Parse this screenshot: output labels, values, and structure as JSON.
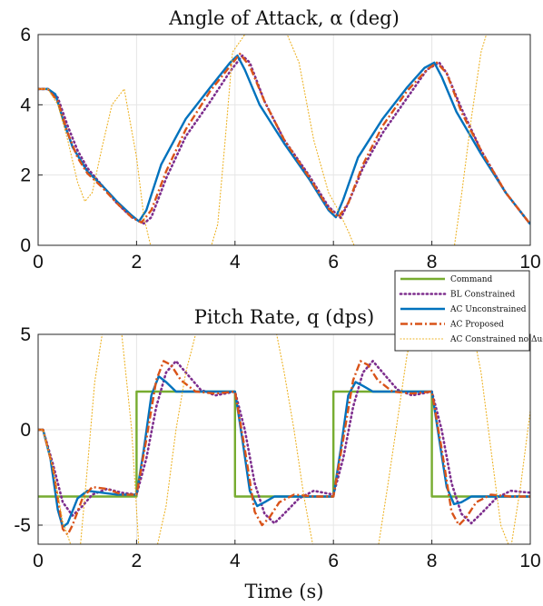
{
  "chart_data": [
    {
      "type": "line",
      "title": "Angle of Attack, α (deg)",
      "xlabel": "",
      "ylabel": "",
      "xlim": [
        0,
        10
      ],
      "ylim": [
        0,
        6
      ],
      "xticks": [
        "0",
        "2",
        "4",
        "6",
        "8",
        "10"
      ],
      "yticks": [
        "0",
        "2",
        "4",
        "6"
      ],
      "grid": true,
      "series": [
        {
          "name": "BL Constrained",
          "color": "#7e2f8e",
          "style": "dotted",
          "x": [
            0,
            0.2,
            0.4,
            0.6,
            0.8,
            1.0,
            1.3,
            1.6,
            1.9,
            2.15,
            2.3,
            2.6,
            3.0,
            3.5,
            3.9,
            4.15,
            4.3,
            4.6,
            5.0,
            5.5,
            5.9,
            6.15,
            6.3,
            6.6,
            7.0,
            7.5,
            7.9,
            8.15,
            8.3,
            8.6,
            9.0,
            9.5,
            10.0
          ],
          "y": [
            4.45,
            4.45,
            4.2,
            3.4,
            2.7,
            2.2,
            1.7,
            1.2,
            0.8,
            0.62,
            0.8,
            1.9,
            3.1,
            4.1,
            4.95,
            5.4,
            5.2,
            4.1,
            3.0,
            2.0,
            1.1,
            0.78,
            1.2,
            2.2,
            3.2,
            4.2,
            5.0,
            5.2,
            4.9,
            3.9,
            2.7,
            1.5,
            0.6
          ]
        },
        {
          "name": "AC Unconstrained",
          "color": "#0072bd",
          "style": "solid",
          "x": [
            0,
            0.2,
            0.35,
            0.5,
            0.7,
            1.0,
            1.3,
            1.6,
            1.9,
            2.05,
            2.2,
            2.5,
            3.0,
            3.5,
            3.9,
            4.05,
            4.2,
            4.5,
            5.0,
            5.5,
            5.9,
            6.05,
            6.2,
            6.5,
            7.0,
            7.5,
            7.85,
            8.05,
            8.2,
            8.5,
            9.0,
            9.5,
            10.0
          ],
          "y": [
            4.45,
            4.45,
            4.3,
            3.6,
            2.8,
            2.1,
            1.7,
            1.25,
            0.85,
            0.68,
            1.0,
            2.3,
            3.6,
            4.5,
            5.2,
            5.4,
            5.0,
            4.0,
            2.9,
            1.9,
            1.0,
            0.8,
            1.3,
            2.5,
            3.6,
            4.5,
            5.05,
            5.2,
            4.8,
            3.8,
            2.6,
            1.5,
            0.6
          ]
        },
        {
          "name": "AC Proposed",
          "color": "#d95319",
          "style": "dashdot",
          "x": [
            0,
            0.2,
            0.4,
            0.6,
            0.8,
            1.0,
            1.3,
            1.6,
            1.9,
            2.1,
            2.3,
            2.6,
            3.0,
            3.5,
            3.9,
            4.1,
            4.3,
            4.6,
            5.0,
            5.5,
            5.9,
            6.1,
            6.3,
            6.6,
            7.0,
            7.5,
            7.9,
            8.1,
            8.3,
            8.6,
            9.0,
            9.5,
            10.0
          ],
          "y": [
            4.45,
            4.45,
            4.1,
            3.2,
            2.5,
            2.05,
            1.65,
            1.2,
            0.8,
            0.65,
            1.0,
            2.1,
            3.3,
            4.4,
            5.1,
            5.45,
            5.1,
            4.1,
            3.0,
            1.95,
            1.05,
            0.8,
            1.2,
            2.3,
            3.4,
            4.4,
            5.0,
            5.2,
            4.9,
            3.8,
            2.7,
            1.5,
            0.6
          ]
        },
        {
          "name": "AC Constrained no Δu₂",
          "color": "#edb120",
          "style": "thin-dotted",
          "x": [
            0,
            0.2,
            0.4,
            0.6,
            0.8,
            0.95,
            1.1,
            1.3,
            1.5,
            1.75,
            2.0,
            2.15,
            2.3,
            3.5,
            3.65,
            3.8,
            3.95,
            4.3,
            5.0,
            5.3,
            5.6,
            5.9,
            6.1,
            6.3,
            6.45,
            8.45,
            8.6,
            8.8,
            9.0,
            9.15
          ],
          "y": [
            4.45,
            4.45,
            4.0,
            3.0,
            1.8,
            1.25,
            1.5,
            2.8,
            4.0,
            4.45,
            2.5,
            0.8,
            -0.1,
            -0.1,
            0.6,
            3.0,
            5.5,
            6.2,
            6.2,
            5.2,
            3.0,
            1.5,
            1.0,
            0.4,
            -0.1,
            -0.1,
            1.4,
            3.6,
            5.5,
            6.2
          ]
        }
      ]
    },
    {
      "type": "line",
      "title": "Pitch Rate, q (dps)",
      "xlabel": "Time (s)",
      "ylabel": "",
      "xlim": [
        0,
        10
      ],
      "ylim": [
        -6,
        5
      ],
      "xticks": [
        "0",
        "2",
        "4",
        "6",
        "8",
        "10"
      ],
      "yticks": [
        "-5",
        "0",
        "5"
      ],
      "grid": true,
      "legend": {
        "placement": "top-right",
        "entries": [
          "Command",
          "BL Constrained",
          "AC Unconstrained",
          "AC Proposed",
          "AC Constrained no Δu₂"
        ]
      },
      "series": [
        {
          "name": "Command",
          "color": "#77ac30",
          "style": "solid",
          "x": [
            0,
            2,
            2,
            4,
            4,
            6,
            6,
            8,
            8,
            10
          ],
          "y": [
            -3.5,
            -3.5,
            2.0,
            2.0,
            -3.5,
            -3.5,
            2.0,
            2.0,
            -3.5,
            -3.5
          ]
        },
        {
          "name": "BL Constrained",
          "color": "#7e2f8e",
          "style": "dotted",
          "x": [
            0,
            0.1,
            0.3,
            0.5,
            0.7,
            0.9,
            1.1,
            1.4,
            1.7,
            2.0,
            2.2,
            2.4,
            2.6,
            2.8,
            3.0,
            3.3,
            3.6,
            4.0,
            4.2,
            4.4,
            4.6,
            4.8,
            5.0,
            5.3,
            5.6,
            6.0,
            6.2,
            6.4,
            6.6,
            6.8,
            7.0,
            7.3,
            7.6,
            8.0,
            8.2,
            8.4,
            8.6,
            8.8,
            9.0,
            9.3,
            9.6,
            10.0
          ],
          "y": [
            0,
            0,
            -1.8,
            -3.8,
            -4.5,
            -4.0,
            -3.4,
            -3.1,
            -3.3,
            -3.4,
            -1.5,
            1.2,
            3.0,
            3.6,
            3.0,
            2.1,
            1.8,
            2.0,
            0.0,
            -2.8,
            -4.4,
            -4.9,
            -4.4,
            -3.6,
            -3.2,
            -3.4,
            -1.5,
            1.2,
            3.0,
            3.6,
            3.0,
            2.1,
            1.8,
            2.0,
            0.0,
            -2.8,
            -4.4,
            -4.9,
            -4.4,
            -3.6,
            -3.2,
            -3.3
          ]
        },
        {
          "name": "AC Unconstrained",
          "color": "#0072bd",
          "style": "solid",
          "x": [
            0,
            0.1,
            0.25,
            0.4,
            0.5,
            0.6,
            0.8,
            1.0,
            1.3,
            1.6,
            2.0,
            2.15,
            2.3,
            2.45,
            2.6,
            2.8,
            3.1,
            3.5,
            4.0,
            4.15,
            4.3,
            4.45,
            4.6,
            4.8,
            5.1,
            5.5,
            6.0,
            6.15,
            6.3,
            6.45,
            6.6,
            6.8,
            7.1,
            7.5,
            8.0,
            8.15,
            8.3,
            8.45,
            8.6,
            8.8,
            9.1,
            9.5,
            10.0
          ],
          "y": [
            0,
            0,
            -1.5,
            -4.2,
            -5.1,
            -4.9,
            -3.6,
            -3.2,
            -3.3,
            -3.4,
            -3.4,
            -1.0,
            1.8,
            2.8,
            2.5,
            2.0,
            2.0,
            2.0,
            2.0,
            -0.5,
            -3.2,
            -4.0,
            -3.8,
            -3.5,
            -3.5,
            -3.5,
            -3.5,
            -1.0,
            1.8,
            2.5,
            2.3,
            2.0,
            2.0,
            2.0,
            2.0,
            -0.5,
            -3.0,
            -3.9,
            -3.8,
            -3.5,
            -3.5,
            -3.5,
            -3.5
          ]
        },
        {
          "name": "AC Proposed",
          "color": "#d95319",
          "style": "dashdot",
          "x": [
            0,
            0.1,
            0.3,
            0.5,
            0.6,
            0.7,
            0.9,
            1.1,
            1.4,
            1.7,
            2.0,
            2.2,
            2.4,
            2.55,
            2.7,
            2.9,
            3.2,
            3.6,
            4.0,
            4.2,
            4.4,
            4.55,
            4.7,
            4.9,
            5.2,
            5.6,
            6.0,
            6.2,
            6.4,
            6.55,
            6.7,
            6.9,
            7.2,
            7.6,
            8.0,
            8.2,
            8.4,
            8.55,
            8.7,
            8.9,
            9.2,
            9.6,
            10.0
          ],
          "y": [
            0,
            0,
            -2.0,
            -5.2,
            -5.5,
            -5.0,
            -3.6,
            -3.0,
            -3.1,
            -3.4,
            -3.4,
            -0.5,
            2.6,
            3.6,
            3.4,
            2.6,
            2.0,
            1.9,
            2.0,
            -1.0,
            -4.3,
            -5.0,
            -4.6,
            -3.8,
            -3.4,
            -3.5,
            -3.5,
            -0.5,
            2.6,
            3.6,
            3.4,
            2.6,
            2.0,
            1.9,
            2.0,
            -1.0,
            -4.3,
            -5.0,
            -4.6,
            -3.8,
            -3.4,
            -3.5,
            -3.5
          ]
        },
        {
          "name": "AC Constrained no Δu₂",
          "color": "#edb120",
          "style": "thin-dotted",
          "x": [
            0,
            0.1,
            0.3,
            0.5,
            0.7,
            0.85,
            1.0,
            1.15,
            1.3,
            1.5,
            1.7,
            1.9,
            2.05,
            2.4,
            2.6,
            2.8,
            3.0,
            3.2,
            3.4,
            4.8,
            5.0,
            5.2,
            5.4,
            5.6,
            6.9,
            7.1,
            7.3,
            7.5,
            7.7,
            8.8,
            9.0,
            9.2,
            9.4,
            9.6,
            9.8,
            10.0
          ],
          "y": [
            0,
            0,
            -2.0,
            -4.8,
            -6.3,
            -6.3,
            -2.0,
            2.5,
            5.0,
            5.6,
            5.0,
            0.0,
            -6.3,
            -6.3,
            -4.0,
            0.0,
            3.0,
            5.0,
            5.6,
            5.6,
            3.0,
            0.0,
            -3.5,
            -6.3,
            -6.3,
            -3.0,
            0.5,
            4.0,
            5.6,
            5.6,
            3.0,
            -1.0,
            -5.0,
            -6.3,
            -3.0,
            1.0
          ]
        }
      ]
    }
  ]
}
